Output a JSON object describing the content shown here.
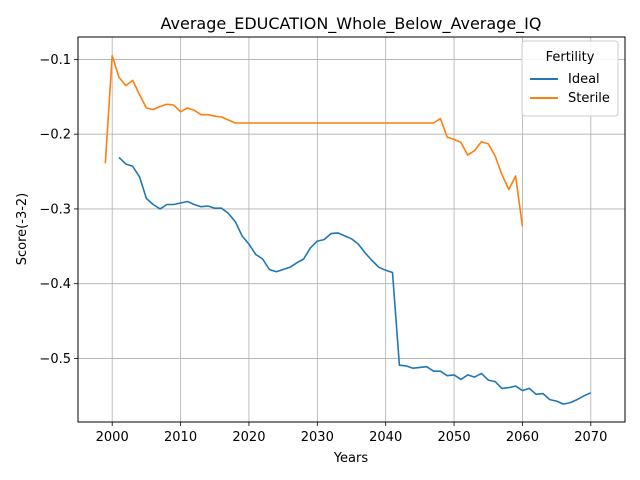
{
  "chart_data": {
    "type": "line",
    "title": "Average_EDUCATION_Whole_Below_Average_IQ",
    "xlabel": "Years",
    "ylabel": "Score(-3-2)",
    "xlim": [
      1995,
      2075
    ],
    "ylim": [
      -0.585,
      -0.07
    ],
    "xticks": [
      2000,
      2010,
      2020,
      2030,
      2040,
      2050,
      2060,
      2070
    ],
    "xtick_labels": [
      "2000",
      "2010",
      "2020",
      "2030",
      "2040",
      "2050",
      "2060",
      "2070"
    ],
    "yticks": [
      -0.5,
      -0.4,
      -0.3,
      -0.2,
      -0.1
    ],
    "ytick_labels": [
      "−0.5",
      "−0.4",
      "−0.3",
      "−0.2",
      "−0.1"
    ],
    "grid": true,
    "legend": {
      "title": "Fertility",
      "placement": "top-right"
    },
    "series": [
      {
        "name": "Ideal",
        "color": "#1f77b4",
        "x": [
          2001,
          2002,
          2003,
          2004,
          2005,
          2006,
          2007,
          2008,
          2009,
          2010,
          2011,
          2012,
          2013,
          2014,
          2015,
          2016,
          2017,
          2018,
          2019,
          2020,
          2021,
          2022,
          2023,
          2024,
          2025,
          2026,
          2027,
          2028,
          2029,
          2030,
          2031,
          2032,
          2033,
          2034,
          2035,
          2036,
          2037,
          2038,
          2039,
          2040,
          2041,
          2042,
          2043,
          2044,
          2045,
          2046,
          2047,
          2048,
          2049,
          2050,
          2051,
          2052,
          2053,
          2054,
          2055,
          2056,
          2057,
          2058,
          2059,
          2060,
          2061,
          2062,
          2063,
          2064,
          2065,
          2066,
          2067,
          2068,
          2069,
          2070
        ],
        "values": [
          -0.231,
          -0.24,
          -0.243,
          -0.257,
          -0.286,
          -0.294,
          -0.3,
          -0.294,
          -0.294,
          -0.292,
          -0.29,
          -0.294,
          -0.297,
          -0.296,
          -0.299,
          -0.299,
          -0.306,
          -0.317,
          -0.336,
          -0.347,
          -0.361,
          -0.367,
          -0.381,
          -0.384,
          -0.381,
          -0.378,
          -0.372,
          -0.367,
          -0.352,
          -0.343,
          -0.341,
          -0.333,
          -0.332,
          -0.336,
          -0.34,
          -0.347,
          -0.359,
          -0.369,
          -0.378,
          -0.382,
          -0.385,
          -0.509,
          -0.51,
          -0.513,
          -0.512,
          -0.511,
          -0.517,
          -0.517,
          -0.523,
          -0.522,
          -0.528,
          -0.522,
          -0.525,
          -0.52,
          -0.529,
          -0.531,
          -0.54,
          -0.539,
          -0.537,
          -0.543,
          -0.54,
          -0.548,
          -0.547,
          -0.555,
          -0.557,
          -0.561,
          -0.559,
          -0.555,
          -0.55,
          -0.546
        ]
      },
      {
        "name": "Sterile",
        "color": "#ff7f0e",
        "x": [
          1999,
          2000,
          2001,
          2002,
          2003,
          2004,
          2005,
          2006,
          2007,
          2008,
          2009,
          2010,
          2011,
          2012,
          2013,
          2014,
          2015,
          2016,
          2017,
          2018,
          2019,
          2020,
          2021,
          2022,
          2023,
          2024,
          2025,
          2026,
          2027,
          2028,
          2029,
          2030,
          2031,
          2032,
          2033,
          2034,
          2035,
          2036,
          2037,
          2038,
          2039,
          2040,
          2041,
          2042,
          2043,
          2044,
          2045,
          2046,
          2047,
          2048,
          2049,
          2050,
          2051,
          2052,
          2053,
          2054,
          2055,
          2056,
          2057,
          2058,
          2059,
          2060
        ],
        "values": [
          -0.239,
          -0.095,
          -0.124,
          -0.135,
          -0.128,
          -0.147,
          -0.165,
          -0.167,
          -0.163,
          -0.16,
          -0.161,
          -0.17,
          -0.165,
          -0.168,
          -0.174,
          -0.174,
          -0.176,
          -0.177,
          -0.181,
          -0.185,
          -0.185,
          -0.185,
          -0.185,
          -0.185,
          -0.185,
          -0.185,
          -0.185,
          -0.185,
          -0.185,
          -0.185,
          -0.185,
          -0.185,
          -0.185,
          -0.185,
          -0.185,
          -0.185,
          -0.185,
          -0.185,
          -0.185,
          -0.185,
          -0.185,
          -0.185,
          -0.185,
          -0.185,
          -0.185,
          -0.185,
          -0.185,
          -0.185,
          -0.185,
          -0.179,
          -0.204,
          -0.207,
          -0.211,
          -0.228,
          -0.222,
          -0.21,
          -0.213,
          -0.229,
          -0.254,
          -0.274,
          -0.256,
          -0.323
        ]
      }
    ]
  }
}
